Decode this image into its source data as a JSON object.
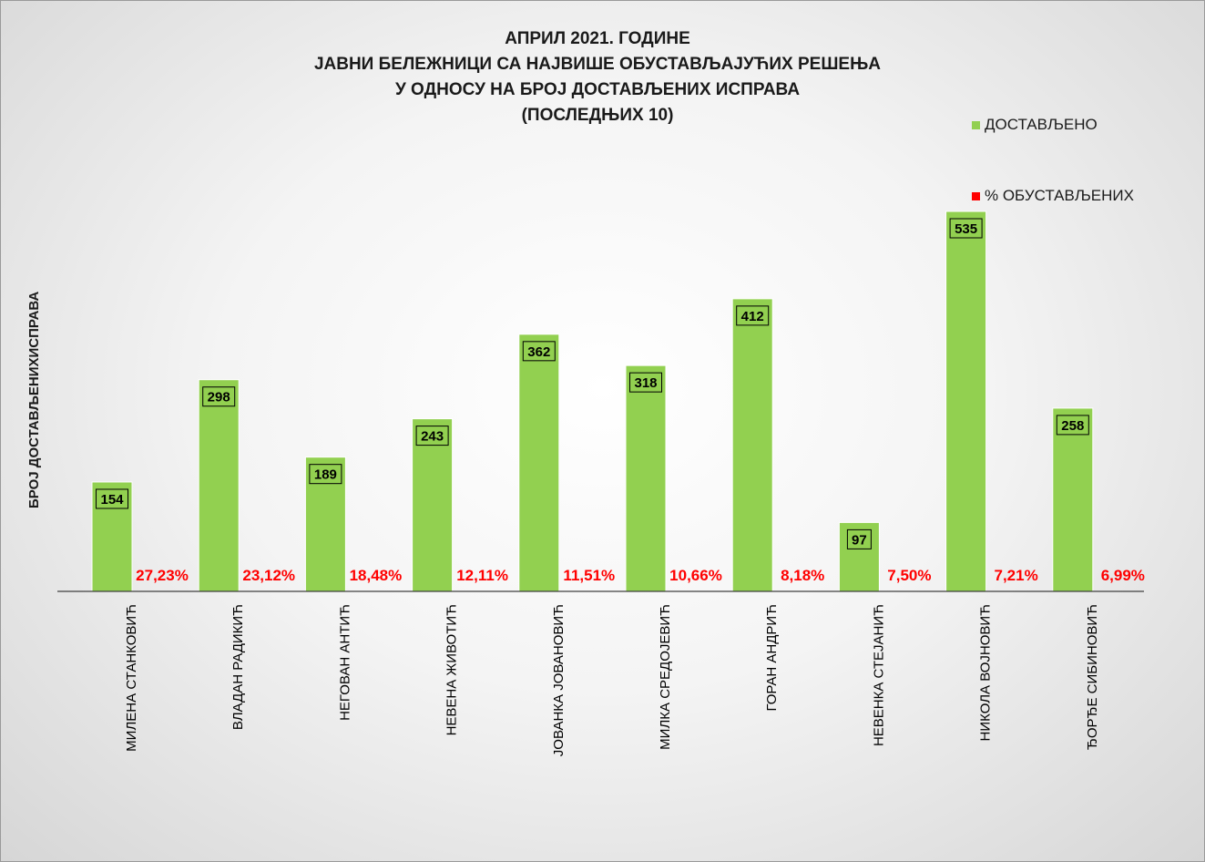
{
  "chart_data": {
    "type": "bar",
    "title_lines": [
      "АПРИЛ 2021. ГОДИНЕ",
      "ЈАВНИ БЕЛЕЖНИЦИ СА НАЈВИШЕ ОБУСТАВЉАЈУЋИХ РЕШЕЊА",
      "У ОДНОСУ НА БРОЈ ДОСТАВЉЕНИХ ИСПРАВА",
      "(ПОСЛЕДЊИХ 10)"
    ],
    "ylabel": "БРОЈ ДОСТАВЉЕНИХИСПРАВА",
    "categories": [
      "МИЛЕНА СТАНКОВИЋ",
      "ВЛАДАН РАДИКИЋ",
      "НЕГОВАН АНТИЋ",
      "НЕВЕНА ЖИВОТИЋ",
      "ЈОВАНКА ЈОВАНОВИЋ",
      "МИЛКА СРЕДОЈЕВИЋ",
      "ГОРАН АНДРИЋ",
      "НЕВЕНКА СТЕЈАНИЋ",
      "НИКОЛА ВОЈНОВИЋ",
      "ЂОРЂЕ СИБИНОВИЋ"
    ],
    "series": [
      {
        "name": "ДОСТАВЉЕНО",
        "color": "#92d050",
        "values": [
          154,
          298,
          189,
          243,
          362,
          318,
          412,
          97,
          535,
          258
        ],
        "labels": [
          "154",
          "298",
          "189",
          "243",
          "362",
          "318",
          "412",
          "97",
          "535",
          "258"
        ]
      },
      {
        "name": "% ОБУСТАВЉЕНИХ",
        "color": "#ff0000",
        "values": [
          27.23,
          23.12,
          18.48,
          12.11,
          11.51,
          10.66,
          8.18,
          7.5,
          7.21,
          6.99
        ],
        "labels": [
          "27,23%",
          "23,12%",
          "18,48%",
          "12,11%",
          "11,51%",
          "10,66%",
          "8,18%",
          "7,50%",
          "7,21%",
          "6,99%"
        ]
      }
    ],
    "ylim": [
      0,
      535
    ],
    "legend_position": "top-right",
    "grid": false
  }
}
